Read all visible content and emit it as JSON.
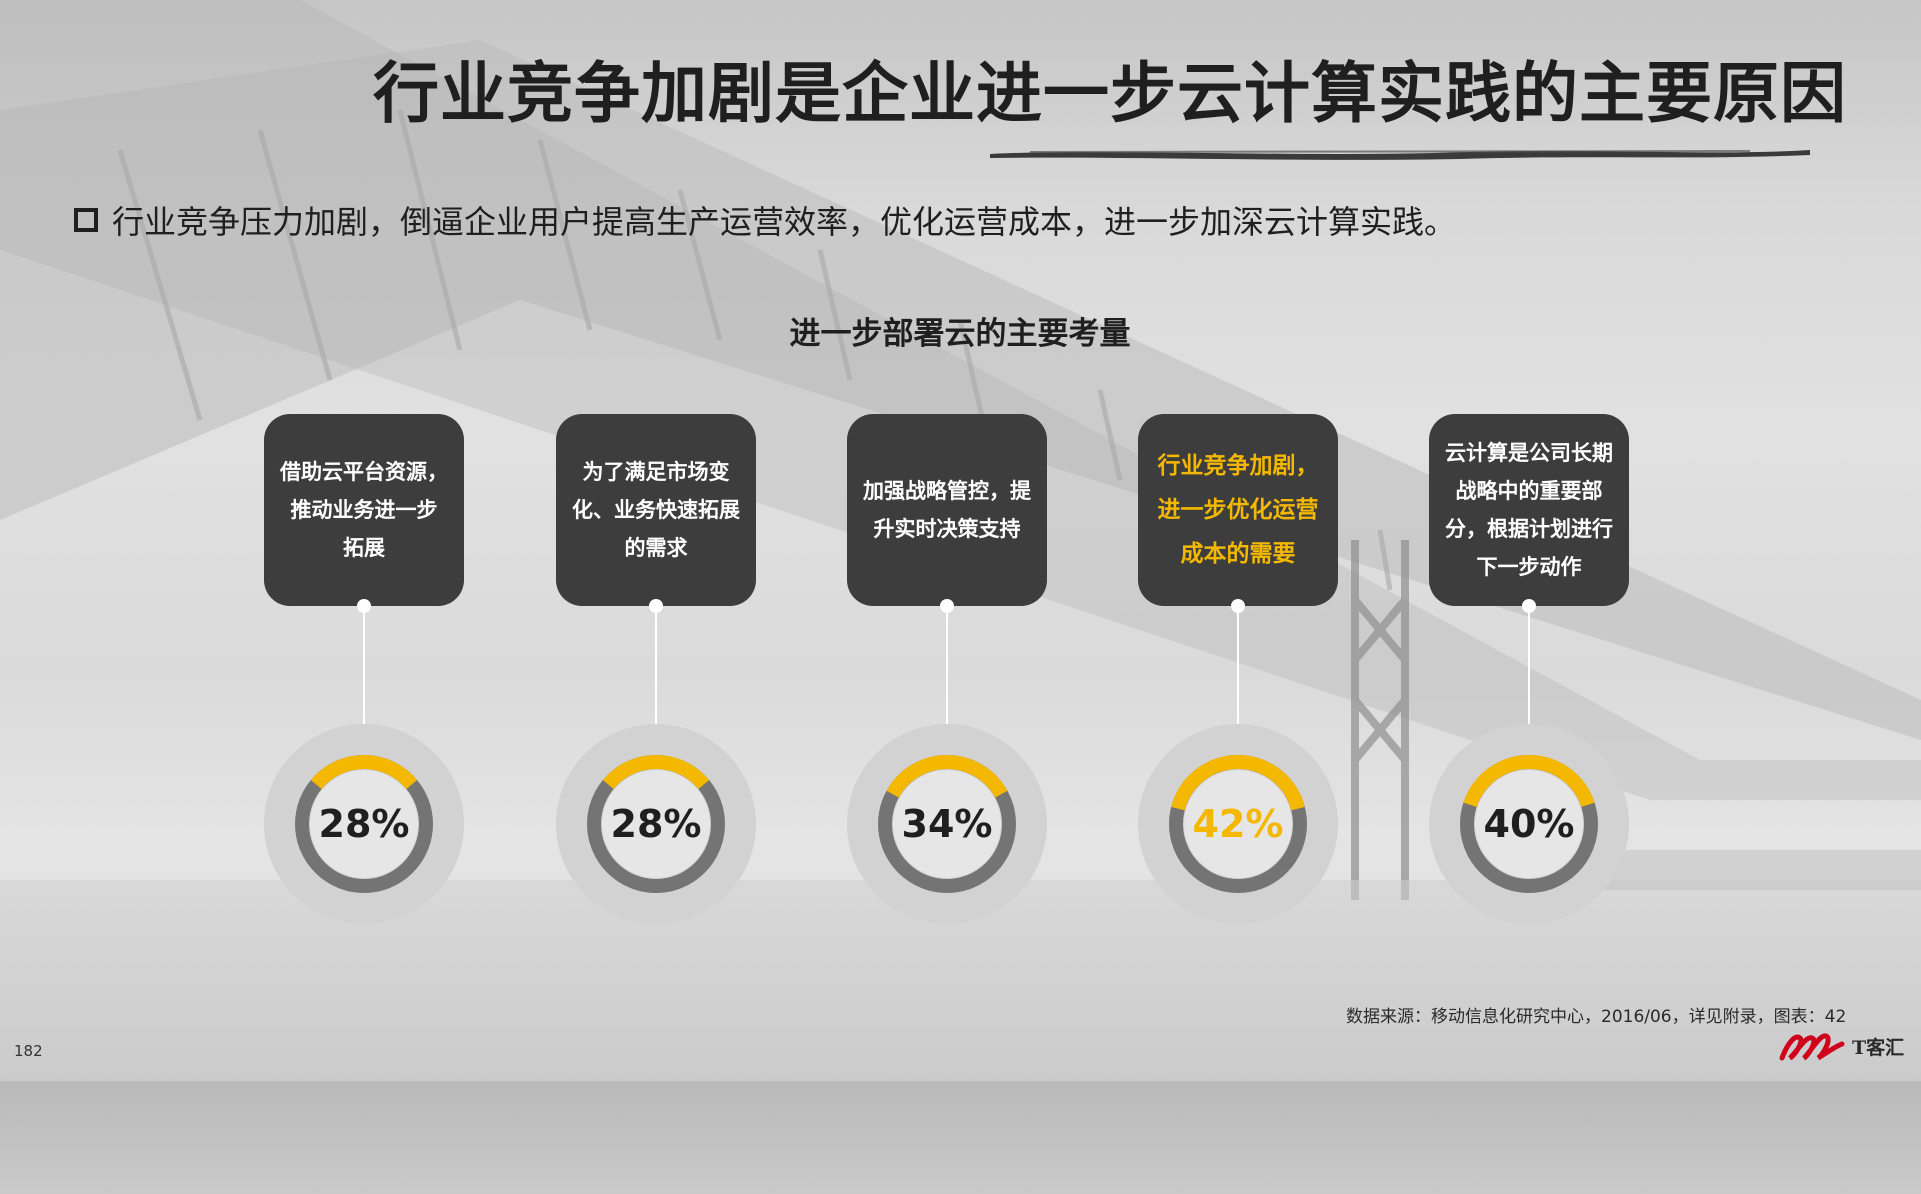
{
  "page": {
    "title": "行业竞争加剧是企业进一步云计算实践的主要原因",
    "bullet": "行业竞争压力加剧，倒逼企业用户提高生产运营效率，优化运营成本，进一步加深云计算实践。",
    "subtitle": "进一步部署云的主要考量",
    "source": "数据来源：移动信息化研究中心，2016/06，详见附录，图表：42",
    "page_number": "182",
    "logo_text": "T客汇"
  },
  "colors": {
    "accent": "#f5b800",
    "card_bg": "#3d3d3d",
    "ring_track": "#747474",
    "ring_outer": "#d2d2d2",
    "ring_inner": "#e6e6e6"
  },
  "factors": [
    {
      "label": "借助云平台资源，\n推动业务进一步\n拓展",
      "value_text": "28%",
      "value": 28,
      "highlight": false
    },
    {
      "label": "为了满足市场变\n化、业务快速拓展\n的需求",
      "value_text": "28%",
      "value": 28,
      "highlight": false
    },
    {
      "label": "加强战略管控，提\n升实时决策支持",
      "value_text": "34%",
      "value": 34,
      "highlight": false
    },
    {
      "label": "行业竞争加剧，\n进一步优化运营\n成本的需要",
      "value_text": "42%",
      "value": 42,
      "highlight": true
    },
    {
      "label": "云计算是公司长期\n战略中的重要部\n分，根据计划进行\n下一步动作",
      "value_text": "40%",
      "value": 40,
      "highlight": false
    }
  ]
}
